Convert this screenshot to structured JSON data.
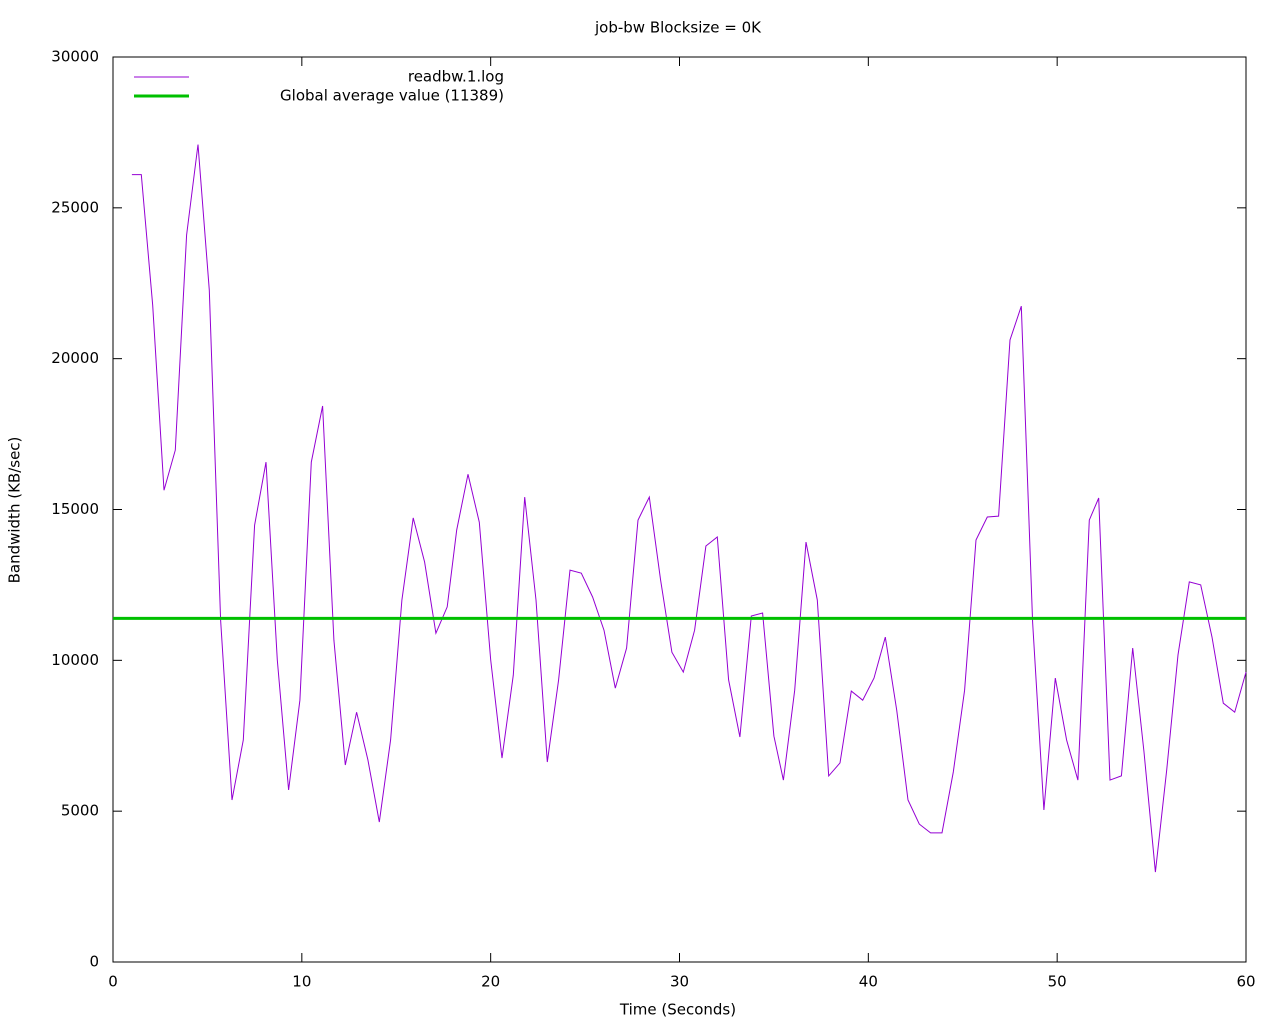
{
  "chart_data": {
    "type": "line",
    "title": "job-bw  Blocksize = 0K",
    "x_label": "Time (Seconds)",
    "y_label": "Bandwidth (KB/sec)",
    "xlim": [
      0,
      60
    ],
    "xticks": [
      0,
      10,
      20,
      30,
      40,
      50,
      60
    ],
    "ylim": [
      0,
      30000
    ],
    "yticks": [
      0,
      5000,
      10000,
      15000,
      20000,
      25000,
      30000
    ],
    "legend": "top-left",
    "x": [
      1.0,
      1.5,
      2.1,
      2.7,
      3.3,
      3.9,
      4.5,
      5.1,
      5.7,
      6.3,
      6.9,
      7.5,
      8.1,
      8.7,
      9.3,
      9.9,
      10.5,
      11.1,
      11.7,
      12.3,
      12.9,
      13.5,
      14.1,
      14.7,
      15.3,
      15.9,
      16.5,
      17.1,
      17.7,
      18.2,
      18.8,
      19.4,
      20.0,
      20.6,
      21.2,
      21.8,
      22.4,
      23.0,
      23.6,
      24.2,
      24.8,
      25.4,
      26.0,
      26.6,
      27.2,
      27.8,
      28.4,
      29.0,
      29.6,
      30.2,
      30.8,
      31.4,
      32.0,
      32.6,
      33.2,
      33.8,
      34.4,
      35.0,
      35.5,
      36.1,
      36.7,
      37.3,
      37.9,
      38.5,
      39.1,
      39.7,
      40.3,
      40.9,
      41.5,
      42.1,
      42.7,
      43.3,
      43.9,
      44.5,
      45.1,
      45.7,
      46.3,
      46.9,
      47.5,
      48.1,
      48.7,
      49.3,
      49.9,
      50.5,
      51.1,
      51.7,
      52.2,
      52.8,
      53.4,
      54.0,
      54.6,
      55.2,
      55.8,
      56.4,
      57.0,
      57.6,
      58.2,
      58.8,
      59.4,
      60.0
    ],
    "series": [
      {
        "name": "readbw.1.log",
        "color": "#9400d3",
        "values": [
          26100,
          26100,
          21770,
          15640,
          16970,
          24100,
          27100,
          22270,
          11340,
          5370,
          7360,
          14480,
          16570,
          10010,
          5700,
          8680,
          16570,
          18430,
          10670,
          6530,
          8280,
          6700,
          4640,
          7360,
          12000,
          14720,
          13260,
          10900,
          11770,
          14320,
          16170,
          14580,
          10010,
          6760,
          9510,
          15410,
          12000,
          6630,
          9350,
          12990,
          12890,
          12100,
          11000,
          9080,
          10410,
          14650,
          15410,
          12660,
          10270,
          9610,
          11000,
          13790,
          14090,
          9350,
          7460,
          11470,
          11570,
          7490,
          6030,
          9010,
          13920,
          12000,
          6170,
          6600,
          8980,
          8680,
          9410,
          10770,
          8350,
          5370,
          4570,
          4280,
          4280,
          6300,
          9010,
          13990,
          14750,
          14780,
          20620,
          21740,
          11270,
          5040,
          9410,
          7360,
          6030,
          14650,
          15380,
          6030,
          6170,
          10410,
          6960,
          2980,
          6360,
          10180,
          12600,
          12500,
          10770,
          8580,
          8280,
          9610
        ]
      }
    ],
    "average": {
      "name": "Global average value (11389)",
      "value": 11389,
      "color": "#00c000"
    }
  }
}
